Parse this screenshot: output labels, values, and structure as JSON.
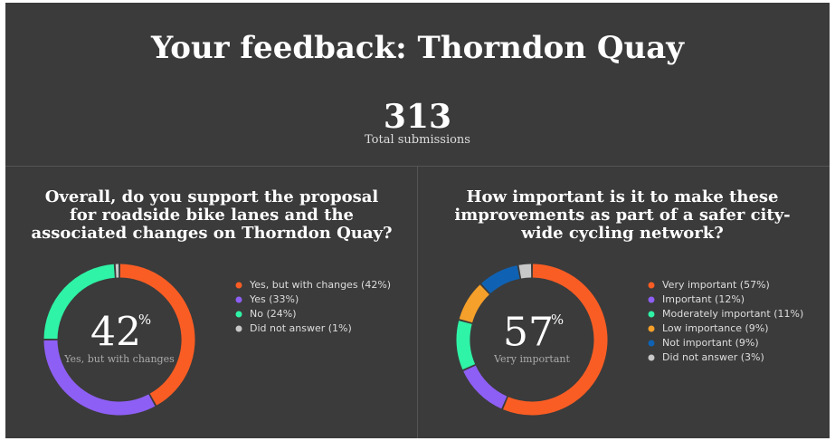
{
  "header": {
    "title": "Your feedback: Thorndon Quay",
    "total": 313,
    "total_label": "Total submissions"
  },
  "chart_data": [
    {
      "type": "pie",
      "donut": true,
      "title": "Overall, do you support the proposal for roadside bike lanes and the associated changes on Thorndon Quay?",
      "categories": [
        "Yes, but with changes (42%)",
        "Yes (33%)",
        "No (24%)",
        "Did not answer (1%)"
      ],
      "values": [
        42,
        33,
        24,
        1
      ],
      "colors": [
        "#fa5d24",
        "#8e5ff5",
        "#2ff3a6",
        "#c8c8c8"
      ],
      "unit": "%",
      "center_caption": "Yes, but with changes"
    },
    {
      "type": "pie",
      "donut": true,
      "title": "How important is it to make these improvements as part of a safer city-wide cycling network?",
      "categories": [
        "Very important (57%)",
        "Important (12%)",
        "Moderately important (11%)",
        "Low importance (9%)",
        "Not important (9%)",
        "Did not answer (3%)"
      ],
      "values": [
        57,
        12,
        11,
        9,
        9,
        3
      ],
      "colors": [
        "#fa5d24",
        "#8e5ff5",
        "#2ff3a6",
        "#f5a02a",
        "#0f62b3",
        "#c8c8c8"
      ],
      "unit": "%",
      "center_caption": "Very important"
    }
  ]
}
